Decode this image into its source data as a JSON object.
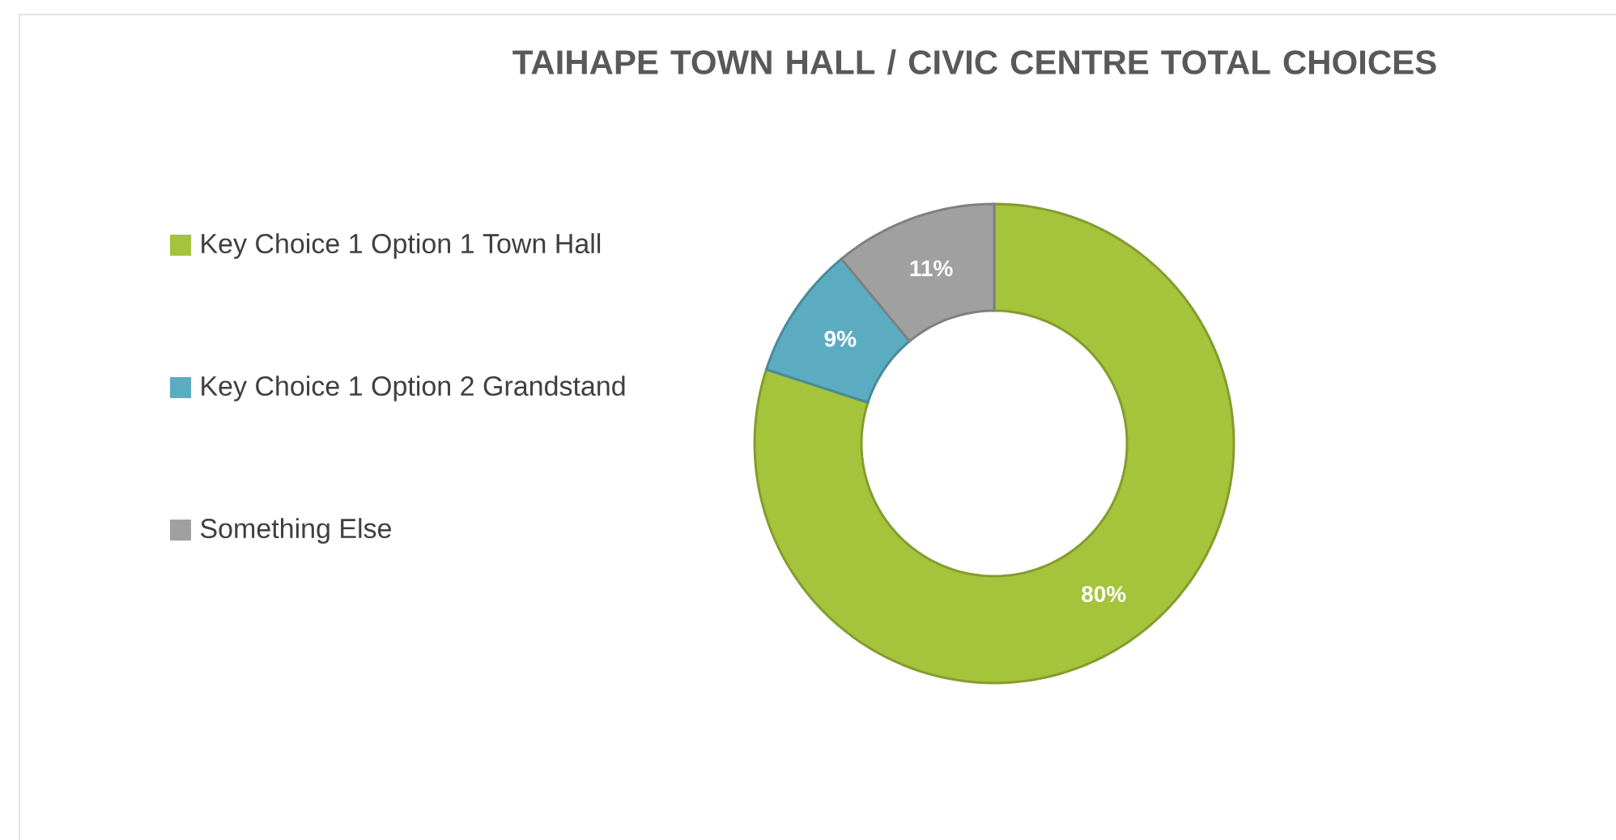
{
  "chart_data": {
    "type": "donut",
    "title": "TAIHAPE TOWN HALL / CIVIC CENTRE TOTAL CHOICES",
    "categories": [
      "Key Choice 1 Option 1 Town Hall",
      "Key Choice 1 Option 2 Grandstand",
      "Something Else"
    ],
    "values": [
      80,
      9,
      11
    ],
    "colors": [
      "#a5c33b",
      "#5bacc0",
      "#a0a0a0"
    ],
    "value_labels": [
      "80%",
      "9%",
      "11%"
    ],
    "legend": "left"
  }
}
